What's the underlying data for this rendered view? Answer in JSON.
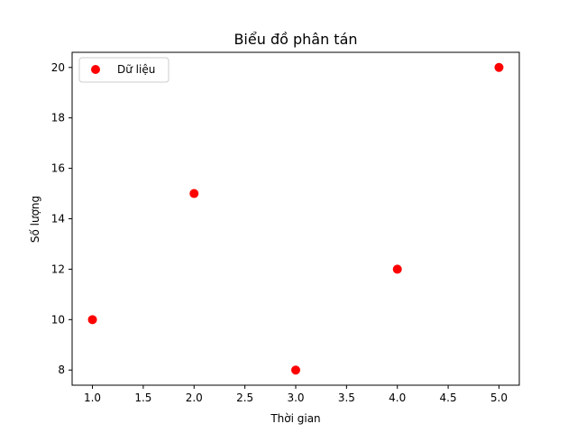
{
  "chart_data": {
    "type": "scatter",
    "title": "Biểu đồ phân tán",
    "xlabel": "Thời gian",
    "ylabel": "Số lượng",
    "xlim": [
      0.8,
      5.2
    ],
    "ylim": [
      7.4,
      20.6
    ],
    "xticks": [
      1.0,
      1.5,
      2.0,
      2.5,
      3.0,
      3.5,
      4.0,
      4.5,
      5.0
    ],
    "xtick_labels": [
      "1.0",
      "1.5",
      "2.0",
      "2.5",
      "3.0",
      "3.5",
      "4.0",
      "4.5",
      "5.0"
    ],
    "yticks": [
      8,
      10,
      12,
      14,
      16,
      18,
      20
    ],
    "ytick_labels": [
      "8",
      "10",
      "12",
      "14",
      "16",
      "18",
      "20"
    ],
    "grid": false,
    "legend_position": "top-left",
    "series": [
      {
        "name": "Dữ liệu",
        "color": "#ff0000",
        "x": [
          1,
          2,
          3,
          4,
          5
        ],
        "y": [
          10,
          15,
          8,
          12,
          20
        ]
      }
    ]
  }
}
